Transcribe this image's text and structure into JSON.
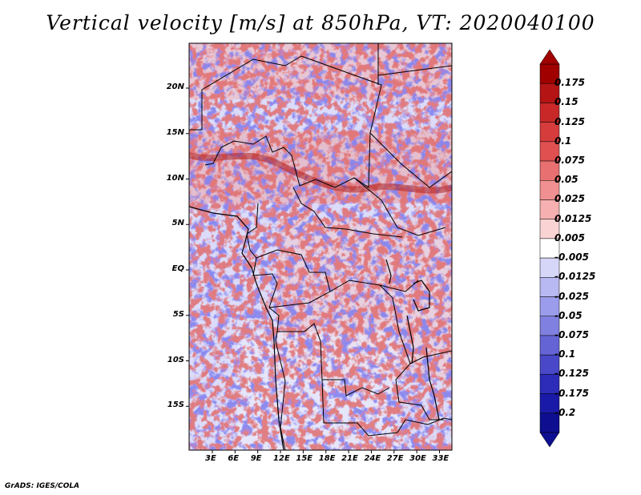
{
  "title": "Vertical velocity [m/s] at 850hPa, VT: 2020040100",
  "footer": "GrADS: IGES/COLA",
  "latitude_labels": [
    "20N",
    "15N",
    "10N",
    "5N",
    "EQ",
    "5S",
    "10S",
    "15S"
  ],
  "latitude_values": [
    20,
    15,
    10,
    5,
    0,
    -5,
    -10,
    -15
  ],
  "longitude_labels": [
    "3E",
    "6E",
    "9E",
    "12E",
    "15E",
    "18E",
    "21E",
    "24E",
    "27E",
    "30E",
    "33E"
  ],
  "longitude_values": [
    3,
    6,
    9,
    12,
    15,
    18,
    21,
    24,
    27,
    30,
    33
  ],
  "colorbar": {
    "labels": [
      "0.175",
      "0.15",
      "0.125",
      "0.1",
      "0.075",
      "0.05",
      "0.025",
      "0.0125",
      "0.005",
      "-0.005",
      "-0.0125",
      "-0.025",
      "-0.05",
      "-0.075",
      "-0.1",
      "-0.125",
      "-0.175",
      "-0.2"
    ],
    "colors": [
      "#a00000",
      "#b41414",
      "#c82828",
      "#d63c3c",
      "#e05050",
      "#e87070",
      "#f09090",
      "#f6b0b0",
      "#fad4d4",
      "#ffffff",
      "#d6d6f8",
      "#b8b8f2",
      "#9c9cec",
      "#8080e0",
      "#6464d4",
      "#4848c8",
      "#2c2cb8",
      "#1a1aa8",
      "#0e0e90"
    ],
    "max_color": "#a00000",
    "min_color": "#0e0e90"
  }
}
